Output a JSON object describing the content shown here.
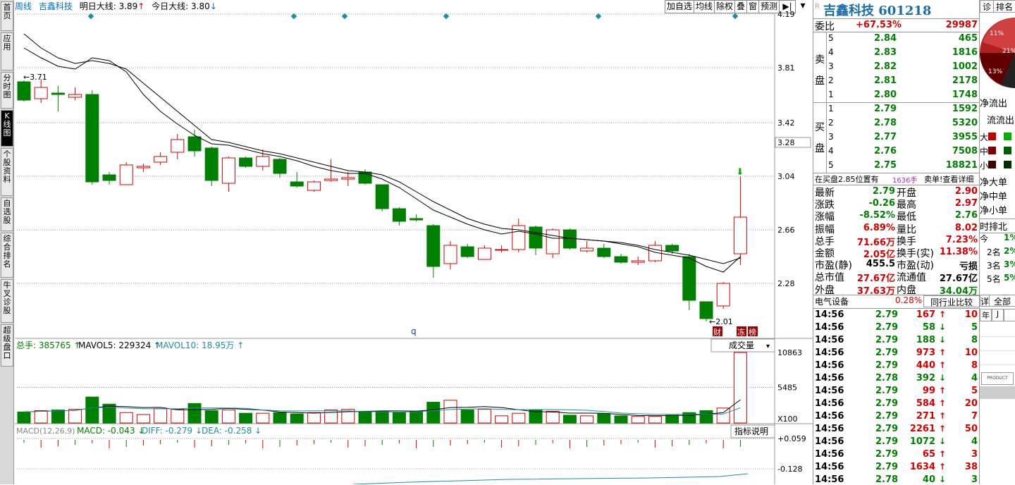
{
  "nav": {
    "items": [
      "首页",
      "应用",
      "分时图",
      "K线图",
      "个股资料",
      "自选股",
      "综合排名",
      "牛叉诊股",
      "超级盘口"
    ],
    "active_index": 3
  },
  "header": {
    "period": "周线",
    "stock_name": "吉鑫科技",
    "tomorrow_label": "明日大线:",
    "tomorrow_value": "3.89",
    "today_label": "今日大线:",
    "today_value": "3.80"
  },
  "toolbar": [
    "加自选",
    "均线",
    "除权",
    "叠",
    "窗",
    "预测"
  ],
  "price_axis": [
    "4.19",
    "3.81",
    "3.42",
    "3.28",
    "3.04",
    "2.66",
    "2.28"
  ],
  "kline": {
    "high_marker": "3.71",
    "low_marker": "2.01",
    "q_marker": "q",
    "badges": [
      "财",
      "冻",
      "榜"
    ],
    "candles": [
      {
        "o": 3.71,
        "c": 3.58,
        "h": 3.72,
        "l": 3.57
      },
      {
        "o": 3.59,
        "c": 3.67,
        "h": 3.73,
        "l": 3.56
      },
      {
        "o": 3.63,
        "c": 3.62,
        "h": 3.68,
        "l": 3.5
      },
      {
        "o": 3.6,
        "c": 3.62,
        "h": 3.67,
        "l": 3.58
      },
      {
        "o": 3.62,
        "c": 3.0,
        "h": 3.65,
        "l": 2.98
      },
      {
        "o": 3.05,
        "c": 3.01,
        "h": 3.07,
        "l": 2.98
      },
      {
        "o": 2.98,
        "c": 3.12,
        "h": 3.14,
        "l": 2.98
      },
      {
        "o": 3.1,
        "c": 3.11,
        "h": 3.13,
        "l": 3.07
      },
      {
        "o": 3.14,
        "c": 3.18,
        "h": 3.21,
        "l": 3.12
      },
      {
        "o": 3.21,
        "c": 3.3,
        "h": 3.34,
        "l": 3.16
      },
      {
        "o": 3.32,
        "c": 3.22,
        "h": 3.37,
        "l": 3.18
      },
      {
        "o": 3.24,
        "c": 3.01,
        "h": 3.25,
        "l": 2.97
      },
      {
        "o": 2.99,
        "c": 3.17,
        "h": 3.18,
        "l": 2.93
      },
      {
        "o": 3.17,
        "c": 3.11,
        "h": 3.18,
        "l": 3.1
      },
      {
        "o": 3.11,
        "c": 3.18,
        "h": 3.23,
        "l": 3.08
      },
      {
        "o": 3.16,
        "c": 3.06,
        "h": 3.17,
        "l": 3.03
      },
      {
        "o": 3.0,
        "c": 2.97,
        "h": 3.07,
        "l": 2.96
      },
      {
        "o": 2.94,
        "c": 3.0,
        "h": 3.01,
        "l": 2.93
      },
      {
        "o": 3.01,
        "c": 3.02,
        "h": 3.16,
        "l": 3.0
      },
      {
        "o": 3.02,
        "c": 3.03,
        "h": 3.07,
        "l": 2.97
      },
      {
        "o": 3.07,
        "c": 2.99,
        "h": 3.09,
        "l": 2.98
      },
      {
        "o": 2.98,
        "c": 2.81,
        "h": 2.98,
        "l": 2.79
      },
      {
        "o": 2.81,
        "c": 2.72,
        "h": 2.82,
        "l": 2.69
      },
      {
        "o": 2.74,
        "c": 2.73,
        "h": 2.77,
        "l": 2.72
      },
      {
        "o": 2.69,
        "c": 2.4,
        "h": 2.7,
        "l": 2.32
      },
      {
        "o": 2.42,
        "c": 2.55,
        "h": 2.58,
        "l": 2.38
      },
      {
        "o": 2.54,
        "c": 2.47,
        "h": 2.56,
        "l": 2.46
      },
      {
        "o": 2.45,
        "c": 2.53,
        "h": 2.55,
        "l": 2.45
      },
      {
        "o": 2.52,
        "c": 2.52,
        "h": 2.55,
        "l": 2.5
      },
      {
        "o": 2.52,
        "c": 2.69,
        "h": 2.74,
        "l": 2.5
      },
      {
        "o": 2.68,
        "c": 2.53,
        "h": 2.69,
        "l": 2.48
      },
      {
        "o": 2.49,
        "c": 2.66,
        "h": 2.67,
        "l": 2.46
      },
      {
        "o": 2.66,
        "c": 2.53,
        "h": 2.67,
        "l": 2.52
      },
      {
        "o": 2.51,
        "c": 2.53,
        "h": 2.58,
        "l": 2.5
      },
      {
        "o": 2.53,
        "c": 2.47,
        "h": 2.56,
        "l": 2.46
      },
      {
        "o": 2.47,
        "c": 2.43,
        "h": 2.49,
        "l": 2.42
      },
      {
        "o": 2.43,
        "c": 2.44,
        "h": 2.47,
        "l": 2.41
      },
      {
        "o": 2.44,
        "c": 2.55,
        "h": 2.58,
        "l": 2.43
      },
      {
        "o": 2.55,
        "c": 2.51,
        "h": 2.56,
        "l": 2.49
      },
      {
        "o": 2.47,
        "c": 2.16,
        "h": 2.49,
        "l": 2.09
      },
      {
        "o": 2.15,
        "c": 2.03,
        "h": 2.15,
        "l": 2.01
      },
      {
        "o": 2.12,
        "c": 2.28,
        "h": 2.29,
        "l": 2.1
      },
      {
        "o": 2.49,
        "c": 2.75,
        "h": 3.04,
        "l": 2.41
      }
    ],
    "ma5": [
      3.95,
      3.88,
      3.82,
      3.8,
      3.88,
      3.86,
      3.78,
      3.62,
      3.5,
      3.41,
      3.33,
      3.27,
      3.26,
      3.23,
      3.2,
      3.18,
      3.15,
      3.11,
      3.08,
      3.06,
      3.06,
      3.02,
      2.96,
      2.88,
      2.8,
      2.75,
      2.7,
      2.66,
      2.63,
      2.65,
      2.63,
      2.6,
      2.6,
      2.59,
      2.58,
      2.56,
      2.54,
      2.5,
      2.48,
      2.46,
      2.4,
      2.36,
      2.47
    ],
    "ma10": [
      4.05,
      3.95,
      3.88,
      3.84,
      3.86,
      3.84,
      3.8,
      3.7,
      3.6,
      3.5,
      3.4,
      3.3,
      3.28,
      3.25,
      3.22,
      3.2,
      3.17,
      3.14,
      3.11,
      3.08,
      3.07,
      3.05,
      3.0,
      2.93,
      2.86,
      2.8,
      2.74,
      2.7,
      2.67,
      2.66,
      2.64,
      2.62,
      2.6,
      2.59,
      2.58,
      2.57,
      2.55,
      2.52,
      2.5,
      2.48,
      2.45,
      2.42,
      2.46
    ]
  },
  "volume": {
    "label_total": "总手: 385765",
    "label_ma5": "MAVOL5: 229324",
    "label_ma10": "MAVOL10: 18.95万",
    "axis": [
      "10863",
      "5485",
      "X100"
    ],
    "selector": "成交量",
    "values": [
      1700,
      1900,
      2000,
      2100,
      4000,
      2900,
      1600,
      1300,
      2200,
      2100,
      3000,
      1900,
      2000,
      1500,
      1500,
      1600,
      1400,
      1600,
      2000,
      2100,
      1800,
      1800,
      1600,
      1800,
      3200,
      3500,
      2000,
      2100,
      1100,
      1500,
      2000,
      1800,
      1200,
      1100,
      1400,
      1100,
      1000,
      1000,
      1200,
      1600,
      1900,
      2300,
      10863
    ]
  },
  "macd": {
    "label": "MACD(12,26,9)",
    "macd_value": "MACD: -0.043",
    "diff_value": "DIFF: -0.279",
    "dea_value": "DEA: -0.258",
    "axis": [
      "+0.059",
      "-0.128"
    ],
    "indicator_button": "指标说明"
  },
  "right": {
    "title": "吉鑫科技 601218",
    "weibi_label": "委比",
    "weibi_pct": "+67.53%",
    "weibi_num": "29987",
    "sell_label": "卖盘",
    "buy_label": "买盘",
    "sells": [
      {
        "n": "5",
        "p": "2.84",
        "v": "465"
      },
      {
        "n": "4",
        "p": "2.83",
        "v": "1816"
      },
      {
        "n": "3",
        "p": "2.82",
        "v": "1002"
      },
      {
        "n": "2",
        "p": "2.81",
        "v": "2178"
      },
      {
        "n": "1",
        "p": "2.80",
        "v": "1748"
      }
    ],
    "buys": [
      {
        "n": "1",
        "p": "2.79",
        "v": "1592"
      },
      {
        "n": "2",
        "p": "2.78",
        "v": "5320"
      },
      {
        "n": "3",
        "p": "2.77",
        "v": "3955"
      },
      {
        "n": "4",
        "p": "2.76",
        "v": "7508"
      },
      {
        "n": "5",
        "p": "2.75",
        "v": "18821"
      }
    ],
    "notice": "在买盘2.85位置有",
    "notice_qty": "1636手",
    "notice_link": "卖单!查看详细",
    "quotes": [
      {
        "l1": "最新",
        "v1": "2.79",
        "l2": "开盘",
        "v2": "2.90"
      },
      {
        "l1": "涨跌",
        "v1": "-0.26",
        "l2": "最高",
        "v2": "2.97"
      },
      {
        "l1": "涨幅",
        "v1": "-8.52%",
        "l2": "最低",
        "v2": "2.76"
      },
      {
        "l1": "振幅",
        "v1": "6.89%",
        "l2": "量比",
        "v2": "8.02"
      },
      {
        "l1": "总手",
        "v1": "71.66万",
        "l2": "换手",
        "v2": "7.23%"
      },
      {
        "l1": "金额",
        "v1": "2.05亿",
        "l2": "换手(实)",
        "v2": "11.38%"
      },
      {
        "l1": "市盈(静)",
        "v1": "455.5",
        "l2": "市盈(动)",
        "v2": "亏损"
      },
      {
        "l1": "总市值",
        "v1": "27.67亿",
        "l2": "流通值",
        "v2": "27.67亿"
      },
      {
        "l1": "外盘",
        "v1": "37.63万",
        "l2": "内盘",
        "v2": "34.04万"
      }
    ],
    "sector": "电气设备",
    "sector_pct": "0.28%",
    "compare_button": "同行业比较",
    "ticks": [
      {
        "t": "14:56",
        "p": "2.79",
        "v": "167",
        "d": "up",
        "n": "10"
      },
      {
        "t": "14:56",
        "p": "2.79",
        "v": "58",
        "d": "down",
        "n": "5"
      },
      {
        "t": "14:56",
        "p": "2.79",
        "v": "188",
        "d": "down",
        "n": "8"
      },
      {
        "t": "14:56",
        "p": "2.79",
        "v": "973",
        "d": "up",
        "n": "10"
      },
      {
        "t": "14:56",
        "p": "2.79",
        "v": "440",
        "d": "up",
        "n": "8"
      },
      {
        "t": "14:56",
        "p": "2.78",
        "v": "392",
        "d": "down",
        "n": "4"
      },
      {
        "t": "14:56",
        "p": "2.79",
        "v": "99",
        "d": "up",
        "n": "5"
      },
      {
        "t": "14:56",
        "p": "2.79",
        "v": "584",
        "d": "up",
        "n": "20"
      },
      {
        "t": "14:56",
        "p": "2.79",
        "v": "271",
        "d": "up",
        "n": "7"
      },
      {
        "t": "14:56",
        "p": "2.79",
        "v": "2261",
        "d": "up",
        "n": "50"
      },
      {
        "t": "14:56",
        "p": "2.79",
        "v": "1072",
        "d": "down",
        "n": "4"
      },
      {
        "t": "14:56",
        "p": "2.79",
        "v": "65",
        "d": "up",
        "n": "3"
      },
      {
        "t": "14:56",
        "p": "2.79",
        "v": "1634",
        "d": "up",
        "n": "38"
      },
      {
        "t": "14:56",
        "p": "2.78",
        "v": "40",
        "d": "down",
        "n": "3"
      }
    ]
  },
  "far_right": {
    "tabs": [
      "诊",
      "排名"
    ],
    "pie_labels": [
      "11%",
      "21%",
      "13%"
    ],
    "flow_out": "净流出",
    "flow_out2": "流流出",
    "size_labels": [
      "大",
      "中",
      "小"
    ],
    "net_labels": [
      "净大单",
      "净中单",
      "净小单"
    ],
    "rank_title": "时排北",
    "rank_items": [
      "今",
      "2名",
      "3名",
      "5名"
    ],
    "rank_pcts": [
      "1%",
      "2%",
      "3%",
      "5%"
    ],
    "detail_tabs": [
      "详",
      "全部"
    ],
    "col_headers": [
      "年",
      "J",
      ""
    ],
    "small_text": "PRODUCT"
  },
  "colors": {
    "up": "#d40000",
    "down": "#008000",
    "teal": "#1a8fa0"
  }
}
